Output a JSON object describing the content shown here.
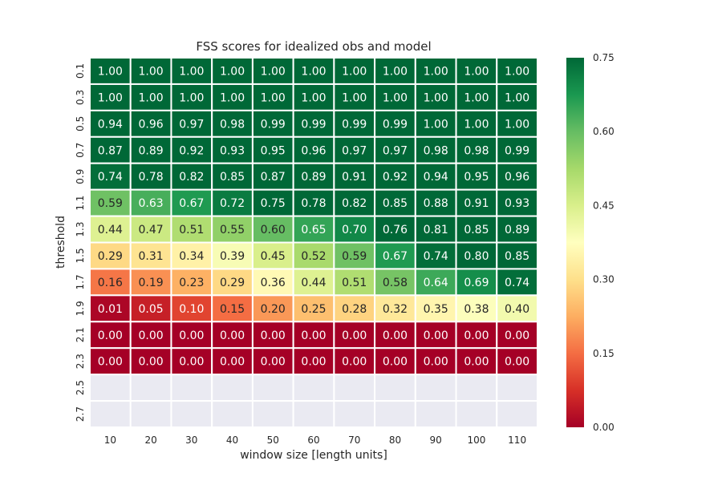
{
  "chart_data": {
    "type": "heatmap",
    "title": "FSS scores for idealized obs and model",
    "xlabel": "window size [length units]",
    "ylabel": "threshold",
    "x_categories": [
      "10",
      "20",
      "30",
      "40",
      "50",
      "60",
      "70",
      "80",
      "90",
      "100",
      "110"
    ],
    "y_categories": [
      "0.1",
      "0.3",
      "0.5",
      "0.7",
      "0.9",
      "1.1",
      "1.3",
      "1.5",
      "1.7",
      "1.9",
      "2.1",
      "2.3",
      "2.5",
      "2.7"
    ],
    "values": [
      [
        1.0,
        1.0,
        1.0,
        1.0,
        1.0,
        1.0,
        1.0,
        1.0,
        1.0,
        1.0,
        1.0
      ],
      [
        1.0,
        1.0,
        1.0,
        1.0,
        1.0,
        1.0,
        1.0,
        1.0,
        1.0,
        1.0,
        1.0
      ],
      [
        0.94,
        0.96,
        0.97,
        0.98,
        0.99,
        0.99,
        0.99,
        0.99,
        1.0,
        1.0,
        1.0
      ],
      [
        0.87,
        0.89,
        0.92,
        0.93,
        0.95,
        0.96,
        0.97,
        0.97,
        0.98,
        0.98,
        0.99
      ],
      [
        0.74,
        0.78,
        0.82,
        0.85,
        0.87,
        0.89,
        0.91,
        0.92,
        0.94,
        0.95,
        0.96
      ],
      [
        0.59,
        0.63,
        0.67,
        0.72,
        0.75,
        0.78,
        0.82,
        0.85,
        0.88,
        0.91,
        0.93
      ],
      [
        0.44,
        0.47,
        0.51,
        0.55,
        0.6,
        0.65,
        0.7,
        0.76,
        0.81,
        0.85,
        0.89
      ],
      [
        0.29,
        0.31,
        0.34,
        0.39,
        0.45,
        0.52,
        0.59,
        0.67,
        0.74,
        0.8,
        0.85
      ],
      [
        0.16,
        0.19,
        0.23,
        0.29,
        0.36,
        0.44,
        0.51,
        0.58,
        0.64,
        0.69,
        0.74
      ],
      [
        0.01,
        0.05,
        0.1,
        0.15,
        0.2,
        0.25,
        0.28,
        0.32,
        0.35,
        0.38,
        0.4
      ],
      [
        0.0,
        0.0,
        0.0,
        0.0,
        0.0,
        0.0,
        0.0,
        0.0,
        0.0,
        0.0,
        0.0
      ],
      [
        0.0,
        0.0,
        0.0,
        0.0,
        0.0,
        0.0,
        0.0,
        0.0,
        0.0,
        0.0,
        0.0
      ],
      [
        null,
        null,
        null,
        null,
        null,
        null,
        null,
        null,
        null,
        null,
        null
      ],
      [
        null,
        null,
        null,
        null,
        null,
        null,
        null,
        null,
        null,
        null,
        null
      ]
    ],
    "value_format": "2 decimals",
    "colorbar": {
      "colormap": "RdYlGn",
      "vmin": 0.0,
      "vmax": 0.75,
      "ticks": [
        "0.00",
        "0.15",
        "0.30",
        "0.45",
        "0.60",
        "0.75"
      ]
    },
    "missing_color": "#eaeaf2",
    "grid_line_color": "#ffffff"
  }
}
